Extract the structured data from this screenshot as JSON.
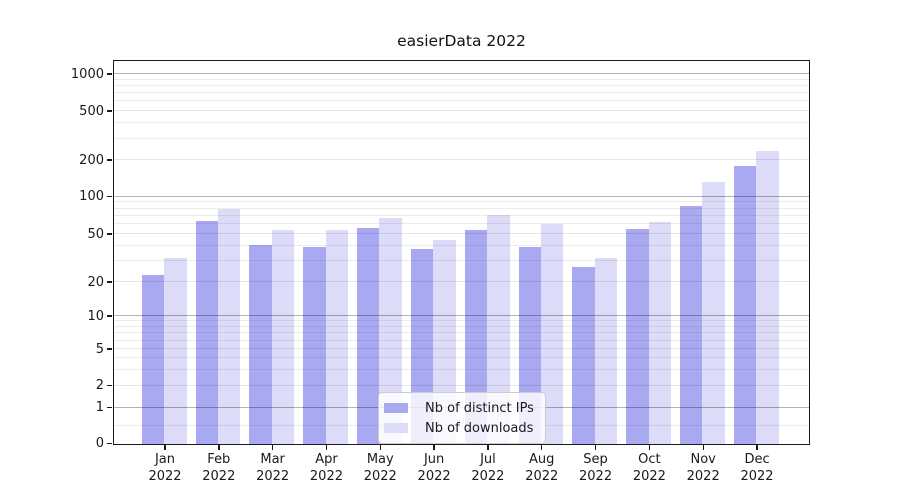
{
  "chart_data": {
    "type": "bar",
    "title": "easierData 2022",
    "scale": "symlog",
    "grid": "on",
    "legend_position": "lower center",
    "categories": [
      "Jan",
      "Feb",
      "Mar",
      "Apr",
      "May",
      "Jun",
      "Jul",
      "Aug",
      "Sep",
      "Oct",
      "Nov",
      "Dec"
    ],
    "year": "2022",
    "series": [
      {
        "name": "Nb of distinct IPs",
        "color": "#a9a9f2",
        "values": [
          23,
          65,
          41,
          40,
          57,
          38,
          55,
          40,
          27,
          56,
          85,
          180
        ]
      },
      {
        "name": "Nb of downloads",
        "color": "#dcdcf9",
        "values": [
          32,
          80,
          55,
          55,
          68,
          45,
          72,
          61,
          32,
          63,
          133,
          240
        ]
      }
    ],
    "yticks": [
      {
        "value": 0,
        "label": "0",
        "grid": "none"
      },
      {
        "value": 1,
        "label": "1",
        "grid": "major"
      },
      {
        "value": 2,
        "label": "2",
        "grid": "light"
      },
      {
        "value": 5,
        "label": "5",
        "grid": "light"
      },
      {
        "value": 10,
        "label": "10",
        "grid": "major"
      },
      {
        "value": 20,
        "label": "20",
        "grid": "light"
      },
      {
        "value": 50,
        "label": "50",
        "grid": "light"
      },
      {
        "value": 100,
        "label": "100",
        "grid": "major"
      },
      {
        "value": 200,
        "label": "200",
        "grid": "light"
      },
      {
        "value": 500,
        "label": "500",
        "grid": "light"
      },
      {
        "value": 1000,
        "label": "1000",
        "grid": "major"
      }
    ],
    "minor_gridline_values": [
      0.5,
      3,
      4,
      6,
      7,
      8,
      9,
      30,
      40,
      60,
      70,
      80,
      90,
      300,
      400,
      600,
      700,
      800,
      900
    ],
    "ylim": [
      0,
      1300
    ],
    "xlabel": "",
    "ylabel": ""
  }
}
